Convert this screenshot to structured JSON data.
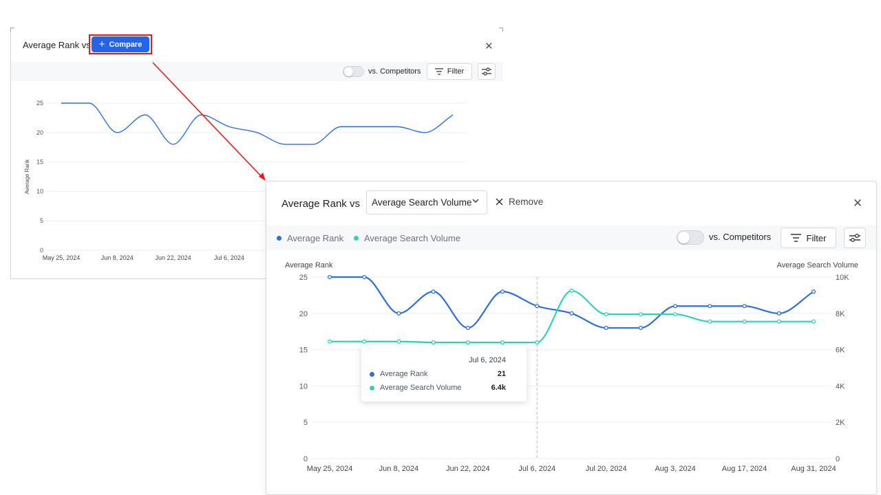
{
  "back_panel": {
    "title": "Average Rank vs",
    "compare_label": "Compare",
    "vs_competitors_label": "vs. Competitors",
    "filter_label": "Filter",
    "y_axis_label": "Average Rank",
    "y_ticks": [
      "25",
      "20",
      "15",
      "10",
      "5",
      "0"
    ],
    "x_ticks": [
      "May 25, 2024",
      "Jun 8, 2024",
      "Jun 22, 2024",
      "Jul 6, 2024"
    ]
  },
  "front_panel": {
    "title": "Average Rank vs",
    "selected_metric": "Average Search Volume",
    "remove_label": "Remove",
    "legend": [
      {
        "label": "Average Rank",
        "color": "#2e6fdc"
      },
      {
        "label": "Average Search Volume",
        "color": "#2ed3b7"
      }
    ],
    "vs_competitors_label": "vs. Competitors",
    "filter_label": "Filter",
    "tooltip": {
      "date": "Jul 6, 2024",
      "rows": [
        {
          "label": "Average Rank",
          "value": "21"
        },
        {
          "label": "Average Search Volume",
          "value": "6.4k"
        }
      ]
    }
  },
  "chart_data": [
    {
      "type": "line",
      "ylabel": "Average Rank",
      "ylim": [
        0,
        25
      ],
      "y_ticks": [
        "25",
        "20",
        "15",
        "10",
        "5",
        "0"
      ],
      "x_ticks": [
        "May 25, 2024",
        "Jun 8, 2024",
        "Jun 22, 2024",
        "Jul 6, 2024"
      ],
      "series": [
        {
          "values": [
            25,
            25,
            20,
            23,
            18,
            23,
            21,
            20,
            18,
            18,
            21,
            21,
            21,
            20,
            23
          ]
        }
      ],
      "grid": true
    },
    {
      "type": "line",
      "x": [
        "May 25",
        "Jun 1",
        "Jun 8",
        "Jun 15",
        "Jun 22",
        "Jun 29",
        "Jul 6",
        "Jul 13",
        "Jul 20",
        "Jul 27",
        "Aug 3",
        "Aug 10",
        "Aug 17",
        "Aug 24",
        "Aug 31"
      ],
      "x_ticks": [
        "May 25, 2024",
        "Jun 8, 2024",
        "Jun 22, 2024",
        "Jul 6, 2024",
        "Jul 20, 2024",
        "Aug 3, 2024",
        "Aug 17, 2024",
        "Aug 31, 2024"
      ],
      "ylabel": "Average Rank",
      "y2label": "Average Search Volume",
      "ylim": [
        0,
        25
      ],
      "y2lim": [
        0,
        10000
      ],
      "y_ticks": [
        "25",
        "20",
        "15",
        "10",
        "5",
        "0"
      ],
      "y2_ticks": [
        "10K",
        "8K",
        "6K",
        "4K",
        "2K",
        "0"
      ],
      "series": [
        {
          "name": "Average Rank",
          "axis": "left",
          "color": "#2e6fdc",
          "values": [
            25,
            25,
            20,
            23,
            18,
            23,
            21,
            20,
            18,
            18,
            21,
            21,
            21,
            20,
            23
          ]
        },
        {
          "name": "Average Search Volume",
          "axis": "right",
          "color": "#2ed3b7",
          "values": [
            6450,
            6450,
            6450,
            6400,
            6400,
            6400,
            6400,
            9250,
            7950,
            7950,
            7950,
            7550,
            7550,
            7550,
            7550
          ]
        }
      ],
      "hover_category": "Jul 6",
      "grid": true,
      "legend": "top-left"
    }
  ]
}
